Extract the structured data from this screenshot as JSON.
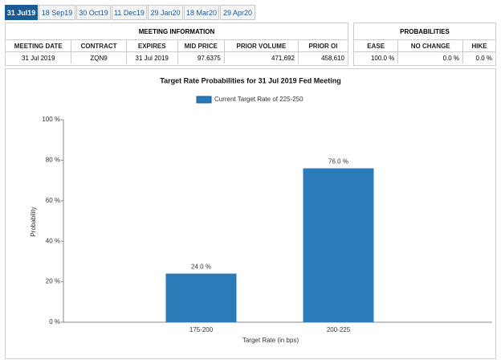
{
  "tabs": [
    "31 Jul19",
    "18 Sep19",
    "30 Oct19",
    "11 Dec19",
    "29 Jan20",
    "18 Mar20",
    "29 Apr20"
  ],
  "meeting_info": {
    "title": "MEETING INFORMATION",
    "columns": [
      "MEETING DATE",
      "CONTRACT",
      "EXPIRES",
      "MID PRICE",
      "PRIOR VOLUME",
      "PRIOR OI"
    ],
    "row": [
      "31 Jul 2019",
      "ZQN9",
      "31 Jul 2019",
      "97.6375",
      "471,692",
      "458,610"
    ]
  },
  "probabilities": {
    "title": "PROBABILITIES",
    "columns": [
      "EASE",
      "NO CHANGE",
      "HIKE"
    ],
    "row": [
      "100.0 %",
      "0.0 %",
      "0.0 %"
    ]
  },
  "chart_data": {
    "type": "bar",
    "title": "Target Rate Probabilities for 31 Jul 2019 Fed Meeting",
    "x_label": "Target Rate (in bps)",
    "y_label": "Probability",
    "categories": [
      "175-200",
      "200-225"
    ],
    "series": [
      {
        "name": "Current Target Rate of 225-250",
        "color": "#2a7ab8",
        "values": [
          24,
          76
        ],
        "value_labels": [
          "24.0 %",
          "76.0 %"
        ]
      }
    ],
    "ylim": [
      0,
      100
    ],
    "yticks": [
      {
        "value": 0,
        "label": "0 %"
      },
      {
        "value": 20,
        "label": "20 %"
      },
      {
        "value": 40,
        "label": "40 %"
      },
      {
        "value": 60,
        "label": "60 %"
      },
      {
        "value": 80,
        "label": "80 %"
      },
      {
        "value": 100,
        "label": "100 %"
      }
    ],
    "grid": false
  }
}
